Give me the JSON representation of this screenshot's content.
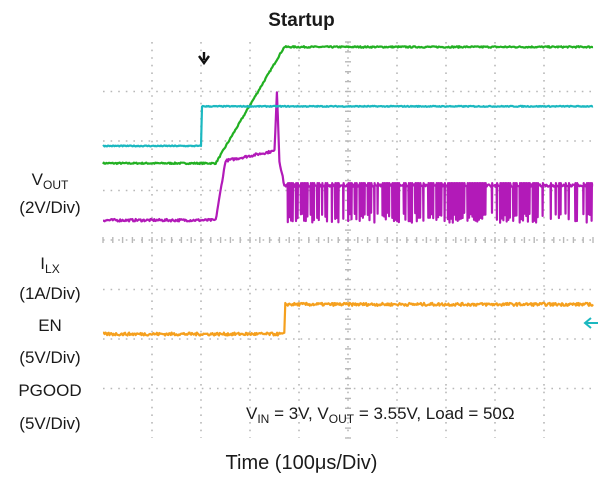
{
  "title": "Startup",
  "xlabel": "Time (100μs/Div)",
  "channels": [
    {
      "name": "V",
      "sub": "OUT",
      "scale": "(2V/Div)"
    },
    {
      "name": "I",
      "sub": "LX",
      "scale": "(1A/Div)"
    },
    {
      "name": "EN",
      "sub": "",
      "scale": "(5V/Div)"
    },
    {
      "name": "PGOOD",
      "sub": "",
      "scale": "(5V/Div)"
    }
  ],
  "annotation": {
    "vin_label": "V",
    "vin_sub": "IN",
    "vin_value": " = 3V, ",
    "vout_label": "V",
    "vout_sub": "OUT",
    "vout_value": " = 3.55V, Load = 50Ω"
  },
  "colors": {
    "vout": "#22b022",
    "ilx": "#b21ab8",
    "en": "#1bb8c0",
    "pgood": "#f5a01e",
    "grid": "#b8b8b8"
  },
  "chart_data": {
    "type": "line",
    "title": "Startup",
    "xlabel": "Time (100μs/Div)",
    "x_divisions": 10,
    "y_divisions": 8,
    "series": [
      {
        "name": "VOUT",
        "x": [
          0,
          2.3,
          3.7,
          10
        ],
        "y": [
          1.55,
          1.55,
          3.9,
          3.9
        ]
      },
      {
        "name": "ILX",
        "x": [
          0,
          2.3,
          2.5,
          3.5,
          3.55,
          3.6,
          3.7,
          10
        ],
        "y": [
          0.4,
          0.4,
          1.6,
          1.8,
          3.0,
          1.6,
          1.1,
          1.1
        ]
      },
      {
        "name": "EN",
        "x": [
          0,
          2.0,
          2.02,
          10
        ],
        "y": [
          1.9,
          1.9,
          2.7,
          2.7
        ]
      },
      {
        "name": "PGOOD",
        "x": [
          0,
          3.7,
          3.72,
          10
        ],
        "y": [
          -1.9,
          -1.9,
          -1.3,
          -1.3
        ]
      }
    ]
  }
}
